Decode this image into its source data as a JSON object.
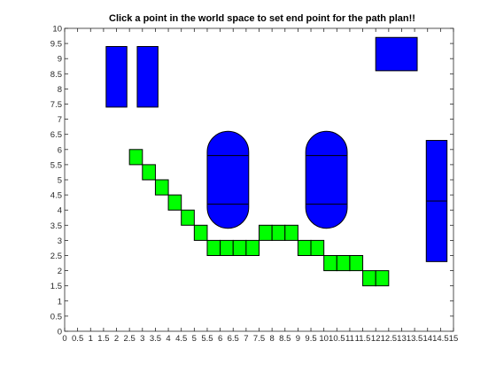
{
  "chart_data": {
    "type": "scatter",
    "title": "Click a point in the world space to set end point for the path plan!!",
    "xlabel": "",
    "ylabel": "",
    "xlim": [
      0,
      15
    ],
    "ylim": [
      0,
      10
    ],
    "x_ticks": [
      "0",
      "0.5",
      "1",
      "1.5",
      "2",
      "2.5",
      "3",
      "3.5",
      "4",
      "4.5",
      "5",
      "5.5",
      "6",
      "6.5",
      "7",
      "7.5",
      "8",
      "8.5",
      "9",
      "9.5",
      "10",
      "10.5",
      "11",
      "11.5",
      "12",
      "12.5",
      "13",
      "13.5",
      "14",
      "14.5",
      "15"
    ],
    "y_ticks": [
      "0",
      "0.5",
      "1",
      "1.5",
      "2",
      "2.5",
      "3",
      "3.5",
      "4",
      "4.5",
      "5",
      "5.5",
      "6",
      "6.5",
      "7",
      "7.5",
      "8",
      "8.5",
      "9",
      "9.5",
      "10"
    ],
    "grid": false,
    "colors": {
      "obstacle": "#0000ff",
      "path": "#00ff00",
      "outline": "#000000"
    },
    "obstacles": [
      {
        "shape": "rect",
        "x": 1.6,
        "y": 7.4,
        "w": 0.8,
        "h": 2.0
      },
      {
        "shape": "rect",
        "x": 2.8,
        "y": 7.4,
        "w": 0.8,
        "h": 2.0
      },
      {
        "shape": "rect",
        "x": 12.0,
        "y": 8.6,
        "w": 1.6,
        "h": 1.1
      },
      {
        "shape": "rect",
        "x": 13.95,
        "y": 2.3,
        "w": 0.8,
        "h": 4.0,
        "divider_y": 4.3
      },
      {
        "shape": "capsule",
        "x": 5.5,
        "y": 3.4,
        "w": 1.6,
        "h": 3.2,
        "dividers_y": [
          4.2,
          5.8
        ]
      },
      {
        "shape": "capsule",
        "x": 9.3,
        "y": 3.4,
        "w": 1.6,
        "h": 3.2,
        "dividers_y": [
          4.2,
          5.8
        ]
      }
    ],
    "path_cell_size": 0.5,
    "path_points": [
      {
        "x": 2.75,
        "y": 5.75
      },
      {
        "x": 3.25,
        "y": 5.25
      },
      {
        "x": 3.75,
        "y": 4.75
      },
      {
        "x": 4.25,
        "y": 4.25
      },
      {
        "x": 4.75,
        "y": 3.75
      },
      {
        "x": 5.25,
        "y": 3.25
      },
      {
        "x": 5.75,
        "y": 2.75
      },
      {
        "x": 6.25,
        "y": 2.75
      },
      {
        "x": 6.75,
        "y": 2.75
      },
      {
        "x": 7.25,
        "y": 2.75
      },
      {
        "x": 7.75,
        "y": 3.25
      },
      {
        "x": 8.25,
        "y": 3.25
      },
      {
        "x": 8.75,
        "y": 3.25
      },
      {
        "x": 9.25,
        "y": 2.75
      },
      {
        "x": 9.75,
        "y": 2.75
      },
      {
        "x": 10.25,
        "y": 2.25
      },
      {
        "x": 10.75,
        "y": 2.25
      },
      {
        "x": 11.25,
        "y": 2.25
      },
      {
        "x": 11.75,
        "y": 1.75
      },
      {
        "x": 12.25,
        "y": 1.75
      }
    ]
  }
}
